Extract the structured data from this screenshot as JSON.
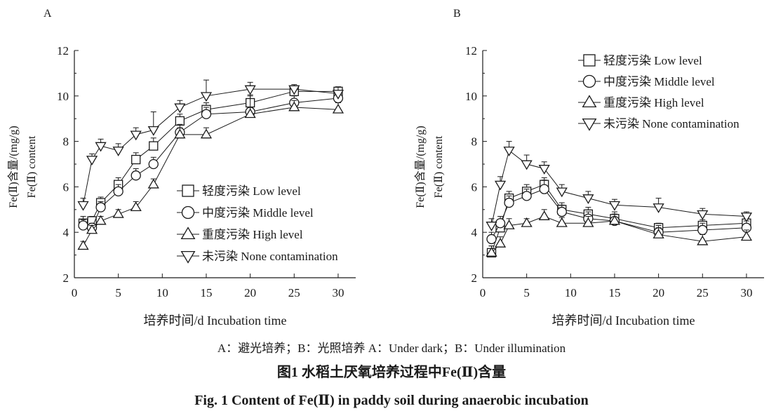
{
  "chart_data": [
    {
      "panel_label": "A",
      "type": "line",
      "xlabel": "培养时间/d Incubation time",
      "ylabel_cn": "Fe(Ⅱ)含量/(mg/g)",
      "ylabel_en": "Fe(Ⅱ) content",
      "xlim": [
        0,
        32
      ],
      "ylim": [
        2,
        12
      ],
      "xticks": [
        0,
        5,
        10,
        15,
        20,
        25,
        30
      ],
      "yticks": [
        2,
        4,
        6,
        8,
        10,
        12
      ],
      "legend_position": "bottom-right",
      "grid": false,
      "series": [
        {
          "name": "轻度污染 Low level",
          "marker": "square",
          "x": [
            1,
            2,
            3,
            5,
            7,
            9,
            12,
            15,
            20,
            25,
            30
          ],
          "y": [
            4.4,
            4.5,
            5.3,
            6.1,
            7.2,
            7.8,
            8.9,
            9.4,
            9.7,
            10.2,
            10.2
          ],
          "err": [
            0.3,
            0.2,
            0.25,
            0.3,
            0.3,
            0.35,
            0.3,
            0.3,
            0.35,
            0.2,
            0.2
          ]
        },
        {
          "name": "中度污染 Middle level",
          "marker": "circle",
          "x": [
            1,
            2,
            3,
            5,
            7,
            9,
            12,
            15,
            20,
            25,
            30
          ],
          "y": [
            4.3,
            4.2,
            5.1,
            5.8,
            6.5,
            7.0,
            8.4,
            9.2,
            9.3,
            9.7,
            9.9
          ],
          "err": [
            0.25,
            0.2,
            0.25,
            0.3,
            0.3,
            0.3,
            0.35,
            0.3,
            0.7,
            0.3,
            0.3
          ]
        },
        {
          "name": "重度污染 High level",
          "marker": "triangle-up",
          "x": [
            1,
            2,
            3,
            5,
            7,
            9,
            12,
            15,
            20,
            25,
            30
          ],
          "y": [
            3.4,
            4.1,
            4.5,
            4.8,
            5.1,
            6.1,
            8.3,
            8.3,
            9.2,
            9.5,
            9.4
          ],
          "err": [
            0.2,
            0.2,
            0.2,
            0.2,
            0.25,
            0.25,
            0.3,
            0.3,
            0.3,
            0.3,
            0.3
          ]
        },
        {
          "name": "未污染 None contamination",
          "marker": "triangle-down",
          "x": [
            1,
            2,
            3,
            5,
            7,
            9,
            12,
            15,
            20,
            25,
            30
          ],
          "y": [
            5.2,
            7.2,
            7.8,
            7.6,
            8.3,
            8.5,
            9.5,
            10.0,
            10.3,
            10.3,
            10.1
          ],
          "err": [
            0.3,
            0.25,
            0.3,
            0.3,
            0.3,
            0.8,
            0.3,
            0.7,
            0.3,
            0.2,
            0.3
          ]
        }
      ]
    },
    {
      "panel_label": "B",
      "type": "line",
      "xlabel": "培养时间/d Incubation time",
      "ylabel_cn": "Fe(Ⅱ)含量/(mg/g)",
      "ylabel_en": "Fe(Ⅱ) content",
      "xlim": [
        0,
        32
      ],
      "ylim": [
        2,
        12
      ],
      "xticks": [
        0,
        5,
        10,
        15,
        20,
        25,
        30
      ],
      "yticks": [
        2,
        4,
        6,
        8,
        10,
        12
      ],
      "legend_position": "top-right",
      "grid": false,
      "series": [
        {
          "name": "轻度污染 Low level",
          "marker": "square",
          "x": [
            1,
            2,
            3,
            5,
            7,
            9,
            12,
            15,
            20,
            25,
            30
          ],
          "y": [
            3.1,
            4.2,
            5.5,
            5.8,
            6.1,
            5.0,
            4.8,
            4.6,
            4.2,
            4.3,
            4.4
          ],
          "err": [
            0.3,
            0.3,
            0.3,
            0.3,
            0.3,
            0.3,
            0.3,
            0.3,
            0.2,
            0.25,
            0.25
          ]
        },
        {
          "name": "中度污染 Middle level",
          "marker": "circle",
          "x": [
            1,
            2,
            3,
            5,
            7,
            9,
            12,
            15,
            20,
            25,
            30
          ],
          "y": [
            3.7,
            4.4,
            5.3,
            5.6,
            5.9,
            4.9,
            4.6,
            4.5,
            4.0,
            4.1,
            4.2
          ],
          "err": [
            0.3,
            0.3,
            0.3,
            0.3,
            0.4,
            0.3,
            0.3,
            0.3,
            0.3,
            0.3,
            0.3
          ]
        },
        {
          "name": "重度污染 High level",
          "marker": "triangle-up",
          "x": [
            1,
            2,
            3,
            5,
            7,
            9,
            12,
            15,
            20,
            25,
            30
          ],
          "y": [
            3.1,
            3.5,
            4.3,
            4.4,
            4.7,
            4.4,
            4.4,
            4.5,
            3.9,
            3.6,
            3.8
          ],
          "err": [
            0.3,
            0.3,
            0.3,
            0.2,
            0.3,
            0.25,
            0.3,
            0.3,
            0.3,
            0.3,
            0.3
          ]
        },
        {
          "name": "未污染 None contamination",
          "marker": "triangle-down",
          "x": [
            1,
            2,
            3,
            5,
            7,
            9,
            12,
            15,
            20,
            25,
            30
          ],
          "y": [
            4.3,
            6.1,
            7.6,
            7.0,
            6.8,
            5.8,
            5.5,
            5.2,
            5.1,
            4.8,
            4.7
          ],
          "err": [
            0.3,
            0.35,
            0.4,
            0.4,
            0.3,
            0.3,
            0.3,
            0.25,
            0.4,
            0.25,
            0.2
          ]
        }
      ]
    }
  ],
  "caption": {
    "note": "A：避光培养；B：光照培养 A：Under dark；B：Under illumination",
    "title_cn": "图1 水稻土厌氧培养过程中Fe(Ⅱ)含量",
    "title_en": "Fig. 1 Content of Fe(Ⅱ) in paddy soil during anaerobic incubation"
  }
}
